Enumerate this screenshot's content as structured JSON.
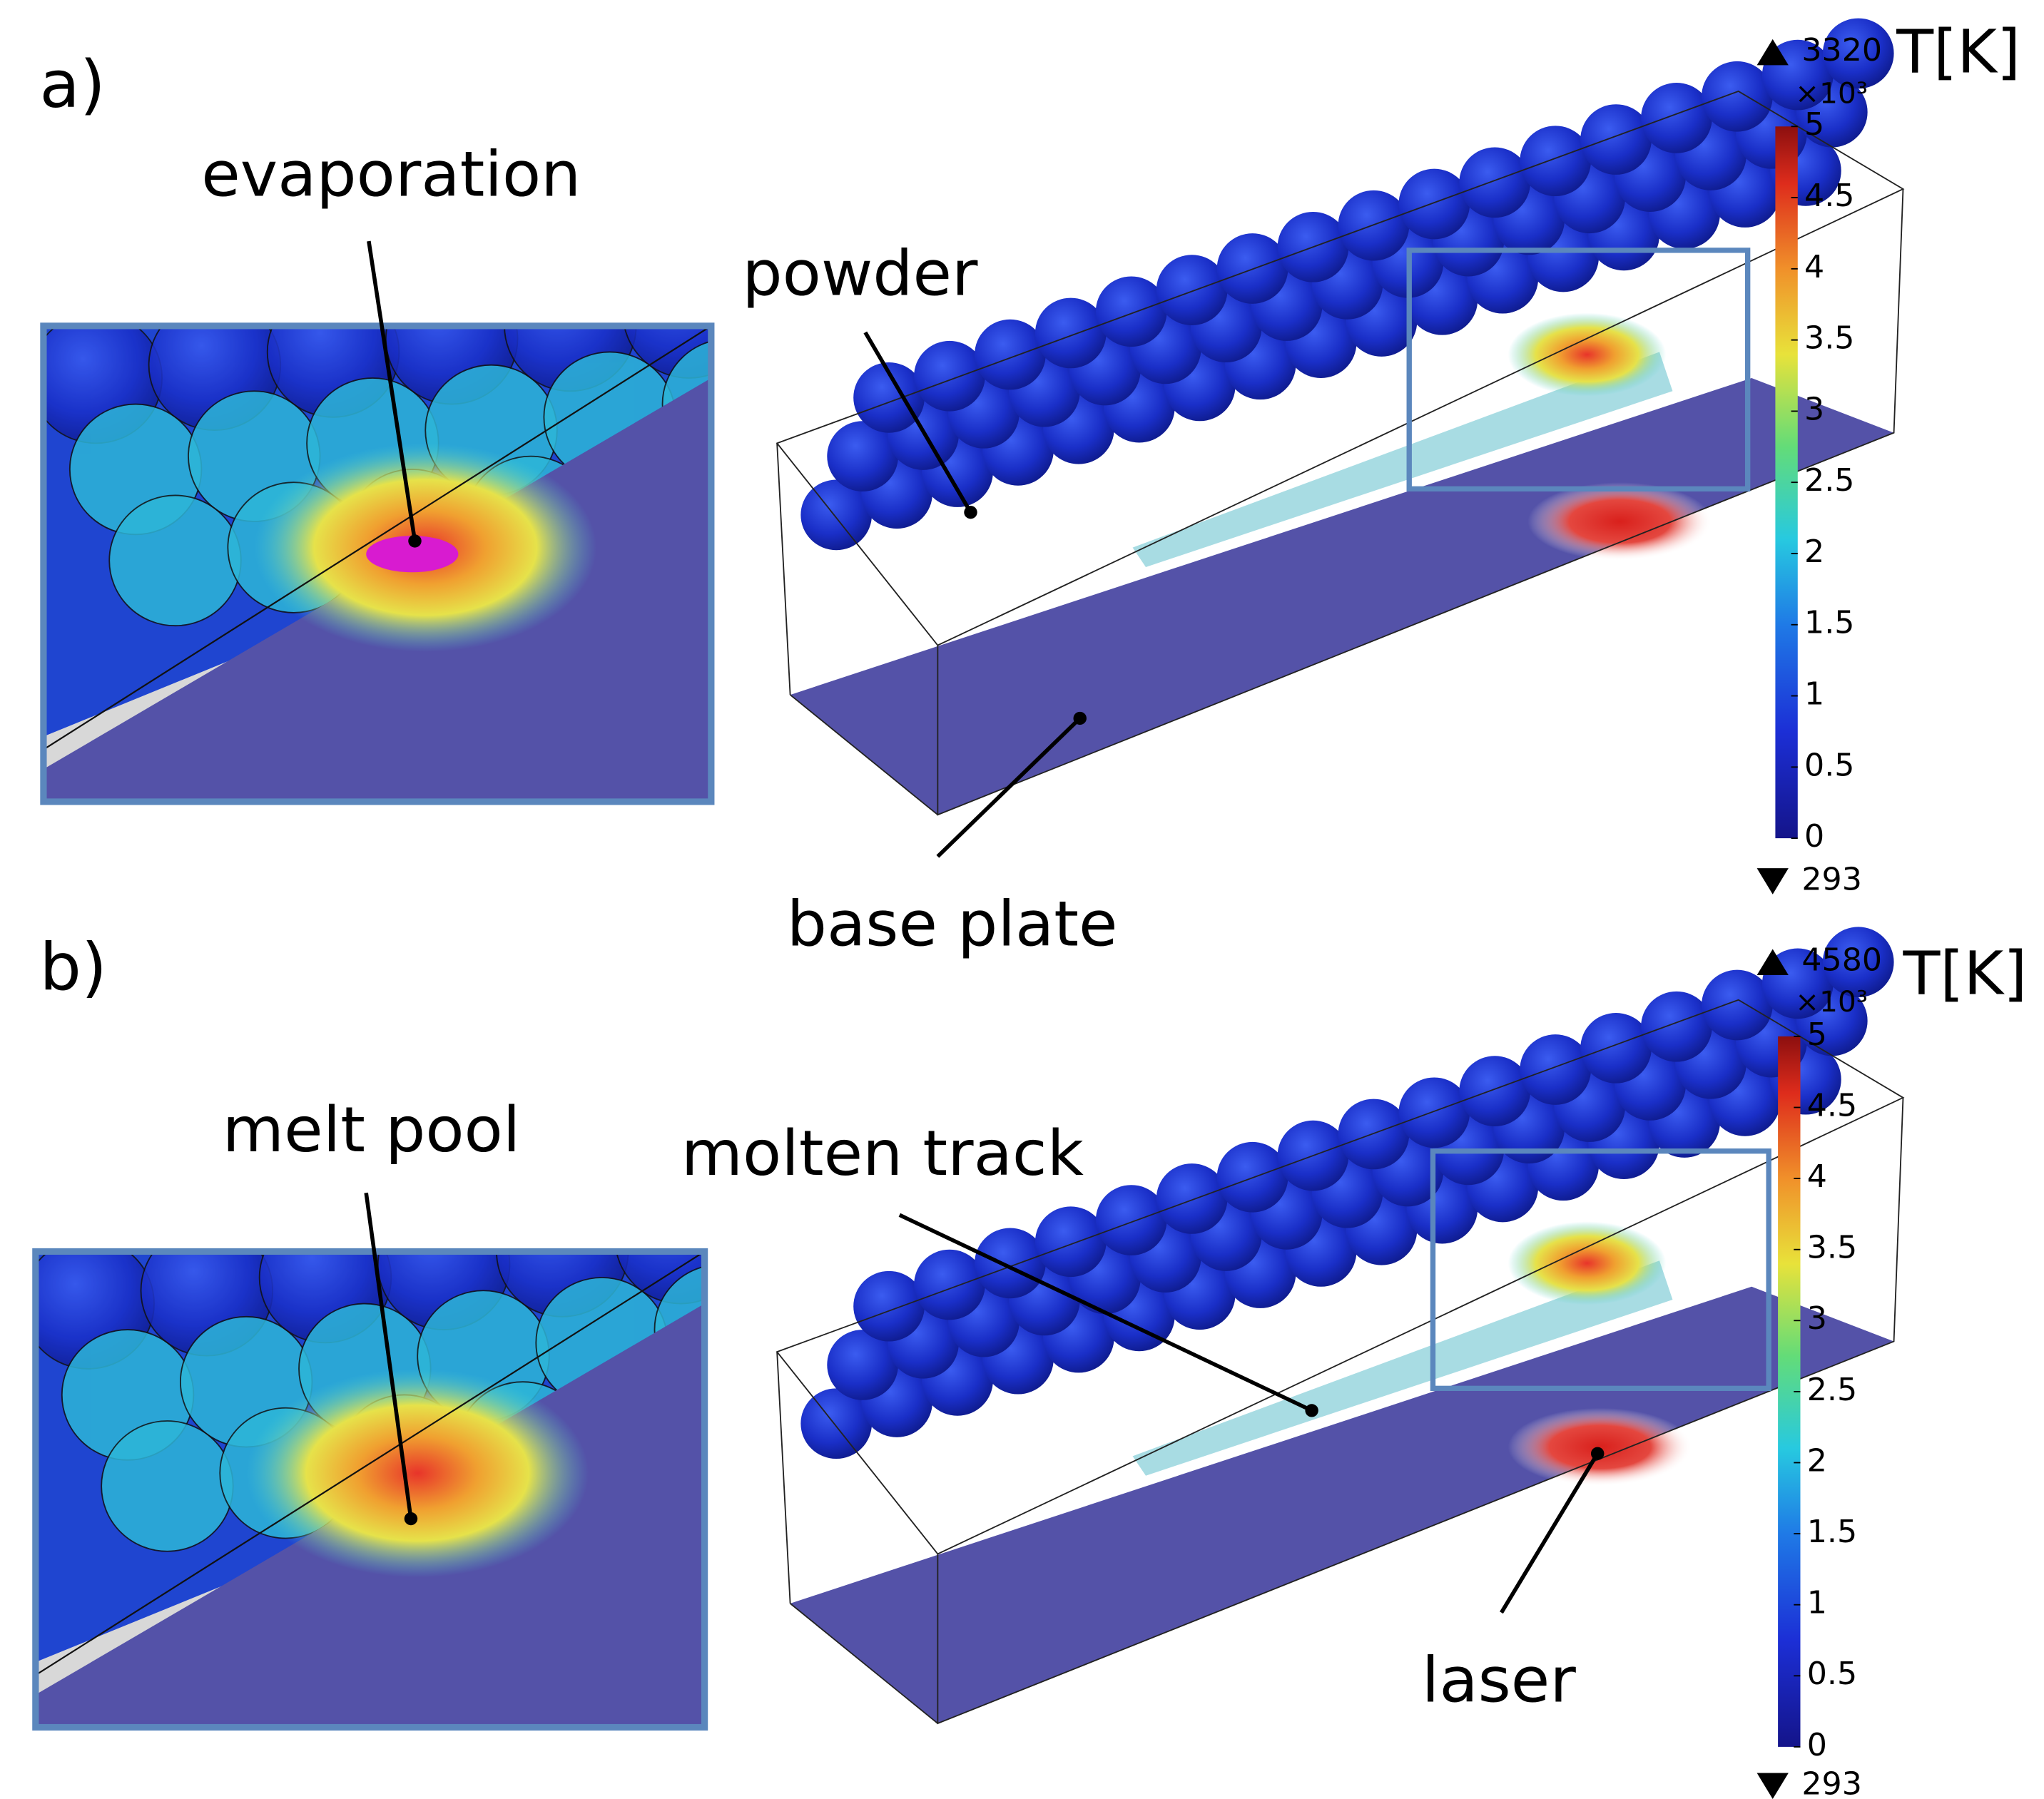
{
  "panels": [
    {
      "label": "a)",
      "annotations": [
        {
          "text": "evaporation"
        },
        {
          "text": "powder"
        },
        {
          "text": "base plate"
        }
      ],
      "colorbar": {
        "unit": "T[K]",
        "max": 3320,
        "min": 293,
        "exponent": "×10³",
        "range": [
          0,
          5
        ],
        "ticks": [
          0,
          0.5,
          1,
          1.5,
          2,
          2.5,
          3,
          3.5,
          4,
          4.5,
          5
        ]
      }
    },
    {
      "label": "b)",
      "annotations": [
        {
          "text": "melt pool"
        },
        {
          "text": "molten track"
        },
        {
          "text": "laser"
        }
      ],
      "colorbar": {
        "unit": "T[K]",
        "max": 4580,
        "min": 293,
        "exponent": "×10³",
        "range": [
          0,
          5
        ],
        "ticks": [
          0,
          0.5,
          1,
          1.5,
          2,
          2.5,
          3,
          3.5,
          4,
          4.5,
          5
        ]
      }
    }
  ]
}
